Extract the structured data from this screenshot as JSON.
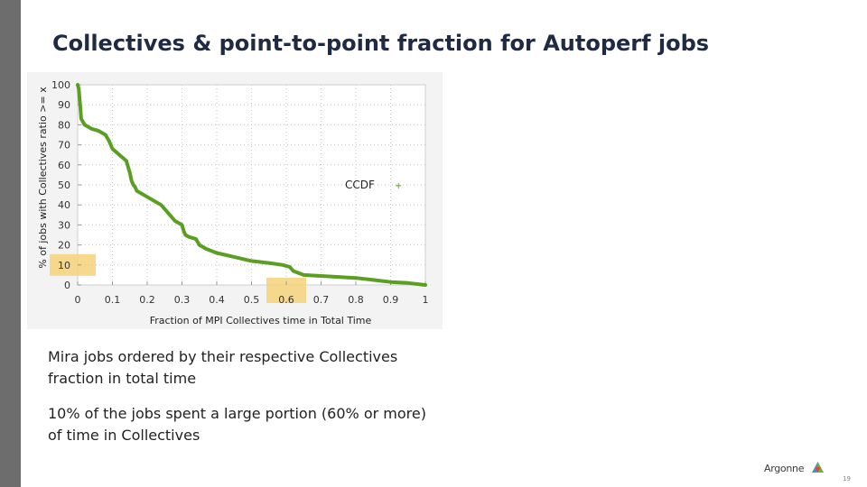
{
  "slide": {
    "title": "Collectives & point-to-point fraction for Autoperf jobs",
    "paragraph1": "Mira jobs ordered by their respective Collectives fraction in total time",
    "paragraph2": "10% of the jobs spent a large portion (60% or more) of time in Collectives",
    "logo_text": "Argonne",
    "page_number": "19"
  },
  "colors": {
    "series": "#5a9e22",
    "highlight": "#f6d27a",
    "title": "#1f2a44"
  },
  "icons": {
    "logo_mark": "argonne-triangle-logo-icon"
  },
  "chart_data": {
    "type": "line",
    "xlabel": "Fraction of MPI Collectives time in Total Time",
    "ylabel": "% of jobs with Collectives ratio >= x",
    "xlim": [
      0,
      1
    ],
    "ylim": [
      0,
      100
    ],
    "x_ticks": [
      "0",
      "0.1",
      "0.2",
      "0.3",
      "0.4",
      "0.5",
      "0.6",
      "0.7",
      "0.8",
      "0.9",
      "1"
    ],
    "y_ticks": [
      "0",
      "10",
      "20",
      "30",
      "40",
      "50",
      "60",
      "70",
      "80",
      "90",
      "100"
    ],
    "grid": true,
    "legend": {
      "position": "right",
      "entries": [
        "CCDF"
      ],
      "marker": "+"
    },
    "highlights": [
      {
        "axis": "y",
        "value": 10,
        "label": "10"
      },
      {
        "axis": "x",
        "value": 0.6,
        "label": "0.6"
      }
    ],
    "series": [
      {
        "name": "CCDF",
        "x": [
          0,
          0.003,
          0.008,
          0.01,
          0.02,
          0.04,
          0.06,
          0.08,
          0.09,
          0.1,
          0.12,
          0.14,
          0.15,
          0.155,
          0.16,
          0.165,
          0.17,
          0.18,
          0.2,
          0.22,
          0.24,
          0.26,
          0.28,
          0.3,
          0.305,
          0.31,
          0.32,
          0.34,
          0.35,
          0.37,
          0.4,
          0.45,
          0.5,
          0.55,
          0.59,
          0.61,
          0.62,
          0.65,
          0.7,
          0.8,
          0.85,
          0.9,
          0.95,
          1
        ],
        "y": [
          100,
          98,
          88,
          83,
          80,
          78,
          77,
          75,
          72,
          68,
          65,
          62,
          56,
          52,
          50,
          49,
          47,
          46,
          44,
          42,
          40,
          36,
          32,
          30,
          27,
          25,
          24,
          23,
          20,
          18,
          16,
          14,
          12,
          11,
          10,
          9,
          7,
          5,
          4.5,
          3.5,
          2.5,
          1.5,
          1,
          0
        ]
      }
    ]
  }
}
